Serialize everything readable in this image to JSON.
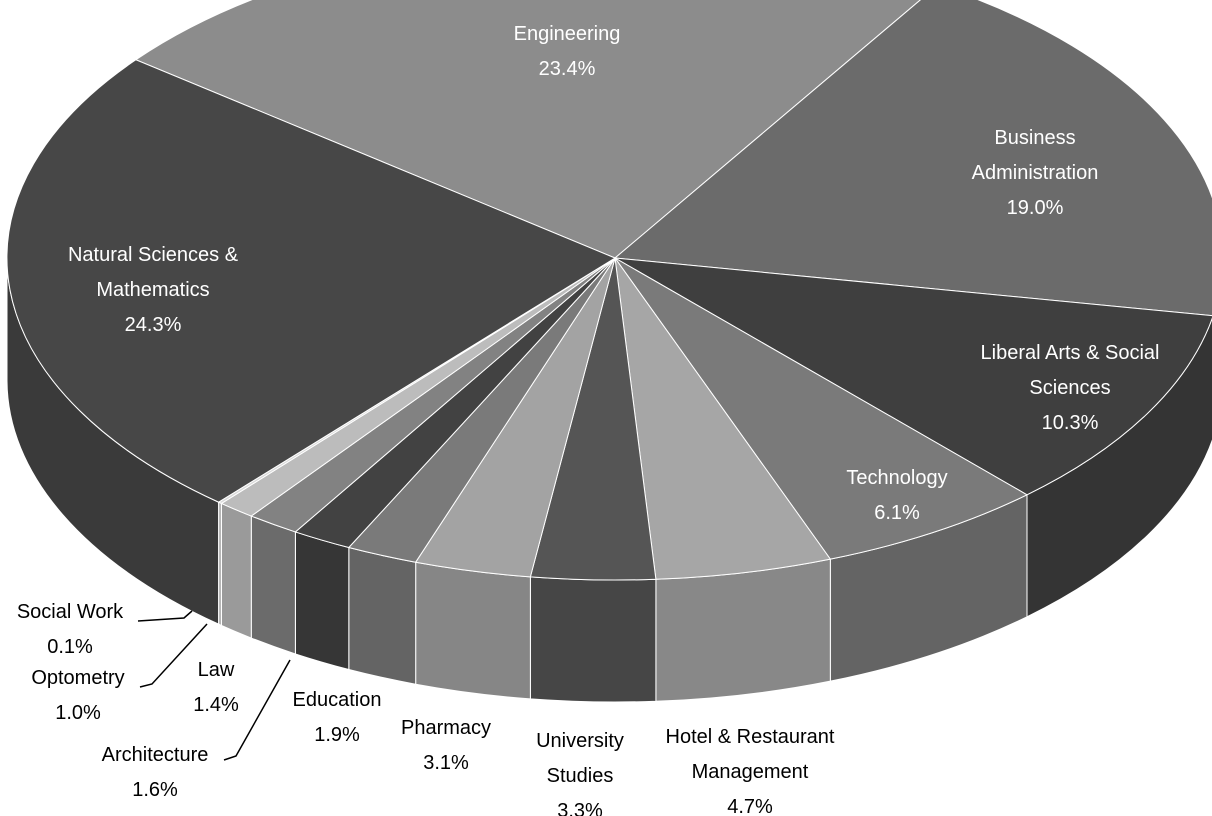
{
  "chart_data": {
    "type": "pie3d",
    "categories": [
      "Engineering",
      "Business Administration",
      "Liberal Arts & Social Sciences",
      "Technology",
      "Hotel & Restaurant Management",
      "University Studies",
      "Pharmacy",
      "Education",
      "Architecture",
      "Law",
      "Optometry",
      "Social Work",
      "Natural Sciences & Mathematics"
    ],
    "values": [
      23.4,
      19.0,
      10.3,
      6.1,
      4.7,
      3.3,
      3.1,
      1.9,
      1.6,
      1.4,
      1.0,
      0.1,
      24.3
    ],
    "value_labels": [
      "23.4%",
      "19.0%",
      "10.3%",
      "6.1%",
      "4.7%",
      "3.3%",
      "3.1%",
      "1.9%",
      "1.6%",
      "1.4%",
      "1.0%",
      "0.1%",
      "24.3%"
    ],
    "colors": [
      "#8c8c8c",
      "#6b6b6b",
      "#3f3f3f",
      "#7a7a7a",
      "#a6a6a6",
      "#555555",
      "#a3a3a3",
      "#7a7a7a",
      "#424242",
      "#828282",
      "#bcbcbc",
      "#dadada",
      "#474747"
    ]
  }
}
